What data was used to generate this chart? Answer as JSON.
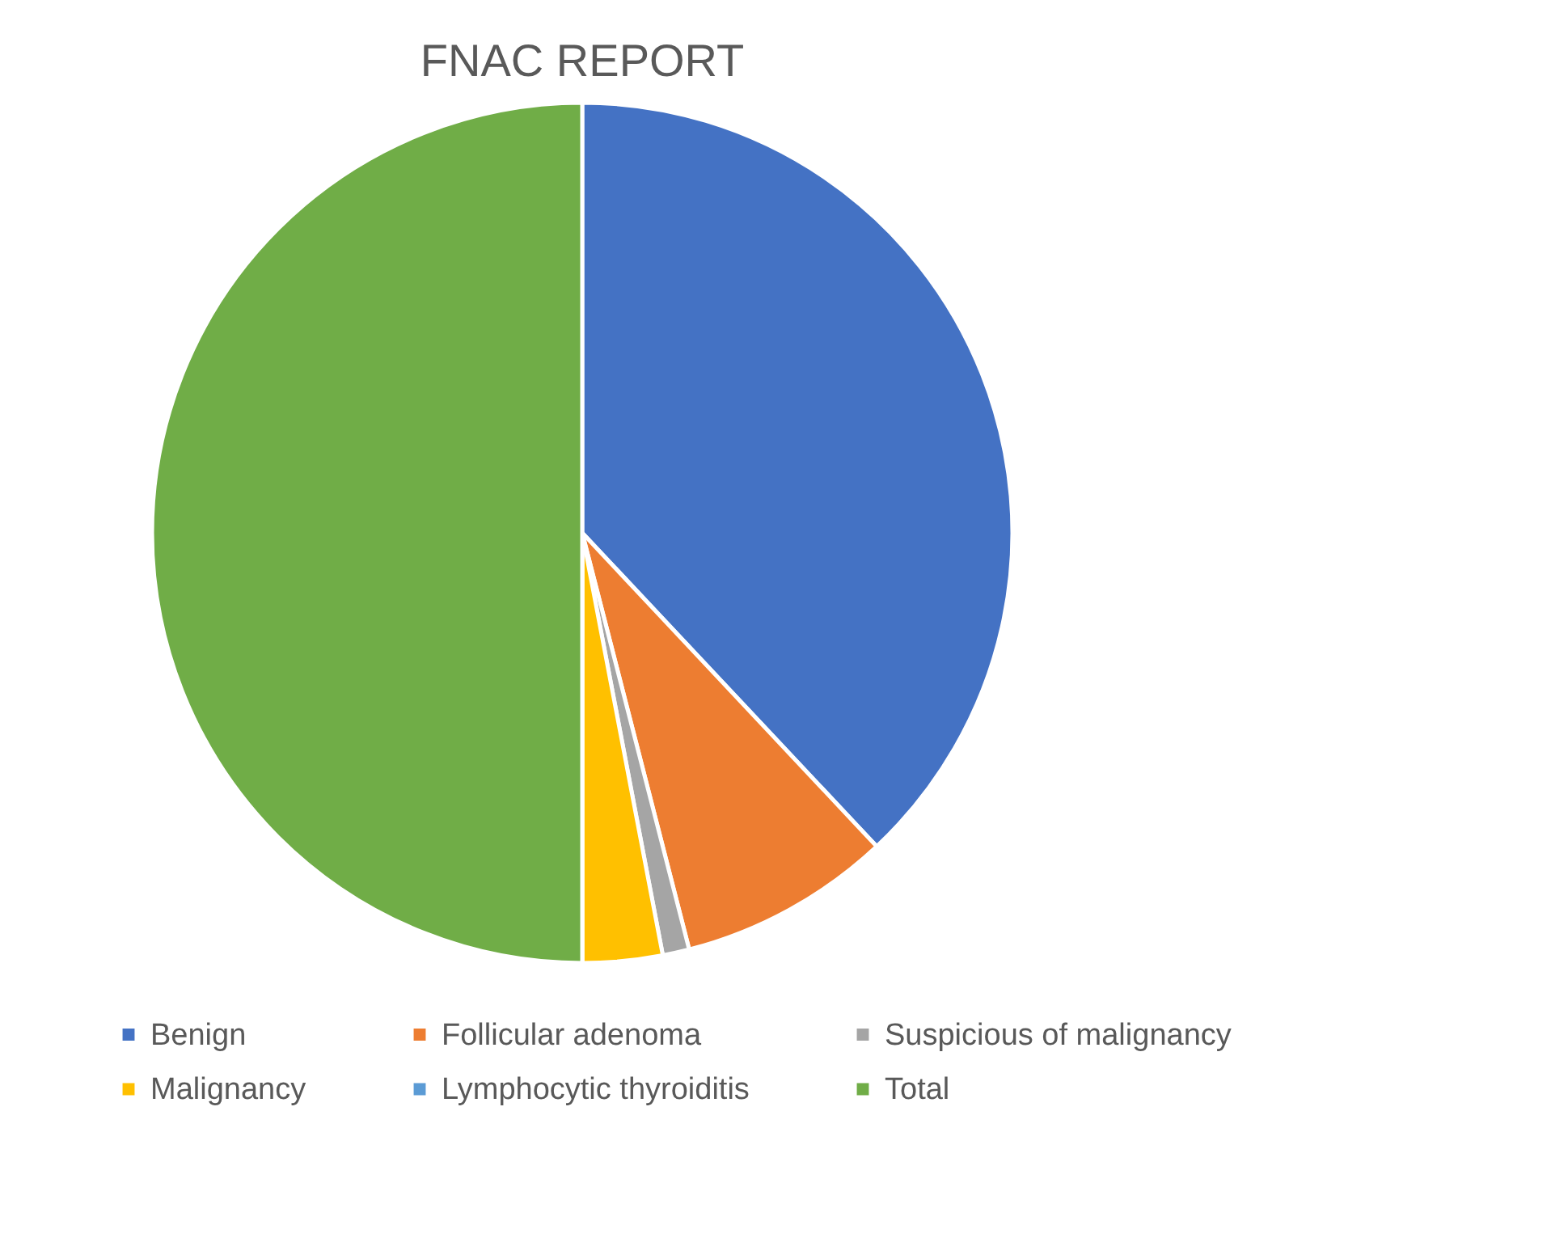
{
  "chart_data": {
    "type": "pie",
    "title": "FNAC REPORT",
    "categories": [
      "Benign",
      "Follicular adenoma",
      "Suspicious of malignancy",
      "Malignancy",
      "Lymphocytic thyroiditis",
      "Total"
    ],
    "values": [
      38,
      8,
      1,
      3,
      0,
      50
    ],
    "colors": [
      "#4472c4",
      "#ed7d31",
      "#a5a5a5",
      "#ffc000",
      "#5b9bd5",
      "#70ad47"
    ],
    "legend": "bottom"
  }
}
